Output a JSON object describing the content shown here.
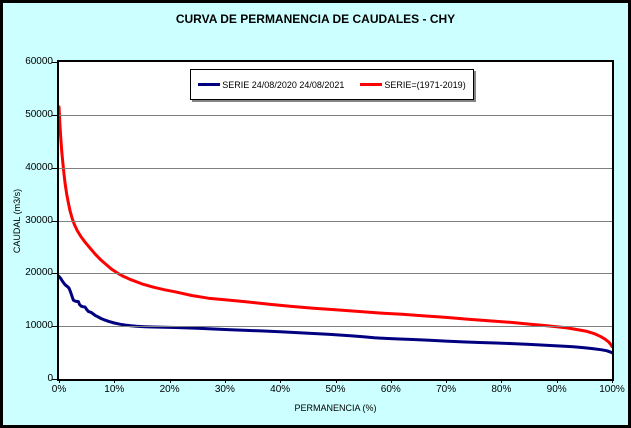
{
  "chart": {
    "background_color": "#CCFFFF",
    "plot_background_color": "#FFFFFF",
    "gridline_color": "#808080",
    "border_color": "#000000"
  },
  "chart_data": {
    "type": "line",
    "title": "CURVA DE PERMANENCIA DE CAUDALES - CHY",
    "xlabel": "PERMANENCIA (%)",
    "ylabel": "CAUDAL (m3/s)",
    "xlim": [
      0,
      100
    ],
    "ylim": [
      0,
      60000
    ],
    "x_ticks_percent": [
      0,
      10,
      20,
      30,
      40,
      50,
      60,
      70,
      80,
      90,
      100
    ],
    "x_tick_labels": [
      "0%",
      "10%",
      "20%",
      "30%",
      "40%",
      "50%",
      "60%",
      "70%",
      "80%",
      "90%",
      "100%"
    ],
    "y_ticks": [
      0,
      10000,
      20000,
      30000,
      40000,
      50000,
      60000
    ],
    "y_tick_labels": [
      "0",
      "10000",
      "20000",
      "30000",
      "40000",
      "50000",
      "60000"
    ],
    "grid": "horizontal-major",
    "legend_position": "top-center",
    "series": [
      {
        "name": "SERIE 24/08/2020 24/08/2021",
        "color": "#000080",
        "points": [
          [
            0,
            19400
          ],
          [
            0.3,
            19050
          ],
          [
            0.6,
            18550
          ],
          [
            0.9,
            18100
          ],
          [
            1.2,
            17750
          ],
          [
            1.5,
            17500
          ],
          [
            1.8,
            17200
          ],
          [
            2.0,
            16700
          ],
          [
            2.2,
            16100
          ],
          [
            2.4,
            15500
          ],
          [
            2.6,
            14900
          ],
          [
            3.0,
            14700
          ],
          [
            3.5,
            14650
          ],
          [
            3.7,
            14100
          ],
          [
            4.0,
            13800
          ],
          [
            4.3,
            13680
          ],
          [
            4.7,
            13620
          ],
          [
            5.0,
            13150
          ],
          [
            5.3,
            12800
          ],
          [
            5.8,
            12600
          ],
          [
            6.2,
            12300
          ],
          [
            6.6,
            12000
          ],
          [
            7.0,
            11800
          ],
          [
            7.6,
            11450
          ],
          [
            8.3,
            11150
          ],
          [
            9.0,
            10900
          ],
          [
            10,
            10600
          ],
          [
            11,
            10380
          ],
          [
            12,
            10200
          ],
          [
            13,
            10070
          ],
          [
            14,
            9980
          ],
          [
            15.5,
            9900
          ],
          [
            17,
            9840
          ],
          [
            19,
            9790
          ],
          [
            21,
            9740
          ],
          [
            23,
            9680
          ],
          [
            25,
            9600
          ],
          [
            28,
            9470
          ],
          [
            31,
            9330
          ],
          [
            34,
            9200
          ],
          [
            37,
            9080
          ],
          [
            40,
            8960
          ],
          [
            43,
            8790
          ],
          [
            46,
            8620
          ],
          [
            49,
            8440
          ],
          [
            51,
            8300
          ],
          [
            53,
            8150
          ],
          [
            55,
            7980
          ],
          [
            57,
            7800
          ],
          [
            59,
            7680
          ],
          [
            61,
            7590
          ],
          [
            64,
            7480
          ],
          [
            67,
            7340
          ],
          [
            70,
            7180
          ],
          [
            73,
            7020
          ],
          [
            76,
            6900
          ],
          [
            79,
            6810
          ],
          [
            82,
            6700
          ],
          [
            85,
            6550
          ],
          [
            88,
            6400
          ],
          [
            91,
            6220
          ],
          [
            93,
            6100
          ],
          [
            95,
            5900
          ],
          [
            96.5,
            5750
          ],
          [
            98,
            5550
          ],
          [
            99,
            5350
          ],
          [
            99.6,
            5150
          ],
          [
            100,
            4950
          ]
        ]
      },
      {
        "name": "SERIE=(1971-2019)",
        "color": "#FF0000",
        "points": [
          [
            0,
            51500
          ],
          [
            0.15,
            48500
          ],
          [
            0.3,
            45800
          ],
          [
            0.5,
            43000
          ],
          [
            0.7,
            40800
          ],
          [
            0.9,
            38800
          ],
          [
            1.1,
            37000
          ],
          [
            1.4,
            35000
          ],
          [
            1.7,
            33300
          ],
          [
            2.0,
            31800
          ],
          [
            2.4,
            30300
          ],
          [
            2.8,
            29200
          ],
          [
            3.3,
            28100
          ],
          [
            4.0,
            26900
          ],
          [
            4.8,
            25800
          ],
          [
            5.6,
            24800
          ],
          [
            6.5,
            23700
          ],
          [
            7.5,
            22600
          ],
          [
            8.5,
            21700
          ],
          [
            9.5,
            20800
          ],
          [
            10.5,
            20100
          ],
          [
            11.5,
            19500
          ],
          [
            13,
            18800
          ],
          [
            15,
            18000
          ],
          [
            17,
            17400
          ],
          [
            19,
            16900
          ],
          [
            21,
            16500
          ],
          [
            24,
            15800
          ],
          [
            27,
            15300
          ],
          [
            30,
            15000
          ],
          [
            34,
            14600
          ],
          [
            38,
            14150
          ],
          [
            42,
            13750
          ],
          [
            46,
            13400
          ],
          [
            50,
            13100
          ],
          [
            54,
            12800
          ],
          [
            58,
            12500
          ],
          [
            62,
            12250
          ],
          [
            66,
            11950
          ],
          [
            70,
            11650
          ],
          [
            74,
            11300
          ],
          [
            78,
            11000
          ],
          [
            82,
            10700
          ],
          [
            85,
            10400
          ],
          [
            88,
            10100
          ],
          [
            90,
            9900
          ],
          [
            92,
            9650
          ],
          [
            94,
            9300
          ],
          [
            95.5,
            9000
          ],
          [
            97,
            8500
          ],
          [
            98,
            8000
          ],
          [
            98.8,
            7500
          ],
          [
            99.4,
            7000
          ],
          [
            99.8,
            6500
          ],
          [
            100,
            6150
          ]
        ]
      }
    ]
  }
}
